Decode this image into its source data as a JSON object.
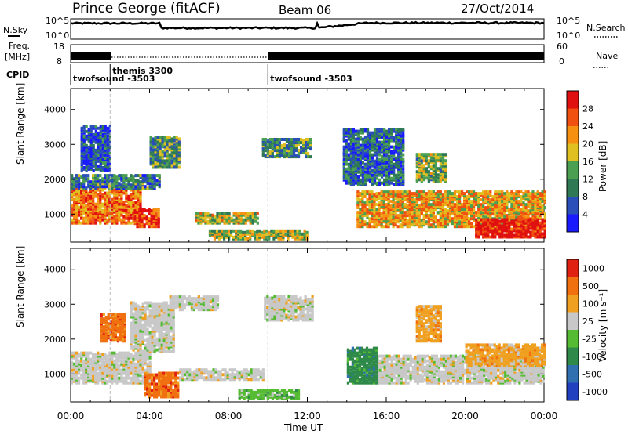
{
  "header": {
    "station": "Prince George (fitACF)",
    "beam": "Beam 06",
    "date": "27/Oct/2014"
  },
  "top_panels": {
    "nsky_label": "N.Sky",
    "nsearch_label": "N.Search",
    "freq_label_top": "Freq.",
    "freq_label_unit": "[MHz]",
    "nave_label": "Nave",
    "cpid_label": "CPID",
    "nsky_ticks": [
      "10^5",
      "10^0"
    ],
    "nsearch_ticks": [
      "10^5",
      "10^0"
    ],
    "freq_ticks": [
      "18",
      "8"
    ],
    "nave_ticks": [
      "60",
      "0"
    ]
  },
  "cpid_segments": [
    {
      "label": "twofsound -3503",
      "start_hour": 0.0,
      "end_hour": 2.0
    },
    {
      "label": "themis 3300",
      "start_hour": 2.0,
      "end_hour": 10.0
    },
    {
      "label": "twofsound -3503",
      "start_hour": 10.0,
      "end_hour": 24.0
    }
  ],
  "chart_data": [
    {
      "type": "heatmap",
      "name_on_chart": "Power",
      "ylabel": "Slant Range [km]",
      "xlabel": "Time UT",
      "x_ticks": [
        "00:00",
        "04:00",
        "08:00",
        "12:00",
        "16:00",
        "20:00",
        "00:00"
      ],
      "x_range_hours": [
        0,
        24
      ],
      "y_ticks": [
        1000,
        2000,
        3000,
        4000
      ],
      "ylim": [
        200,
        4600
      ],
      "colorbar": {
        "label": "Power [dB]",
        "ticks": [
          4,
          8,
          12,
          16,
          20,
          24,
          28
        ],
        "range": [
          0,
          32
        ],
        "colors": [
          "#1a1aff",
          "#2a4fb8",
          "#2f7a55",
          "#4aa050",
          "#e0c020",
          "#f59010",
          "#f05010",
          "#e01010"
        ]
      },
      "echo_regions": [
        {
          "t0": 0.0,
          "t1": 3.5,
          "r0": 700,
          "r1": 1700,
          "level": 0.75
        },
        {
          "t0": 0.0,
          "t1": 4.5,
          "r0": 1700,
          "r1": 2100,
          "level": 0.3
        },
        {
          "t0": 3.2,
          "t1": 4.5,
          "r0": 600,
          "r1": 1100,
          "level": 0.85
        },
        {
          "t0": 4.0,
          "t1": 5.5,
          "r0": 2300,
          "r1": 3200,
          "level": 0.35
        },
        {
          "t0": 6.3,
          "t1": 9.5,
          "r0": 700,
          "r1": 1000,
          "level": 0.55
        },
        {
          "t0": 7.0,
          "t1": 12.0,
          "r0": 250,
          "r1": 500,
          "level": 0.5
        },
        {
          "t0": 9.7,
          "t1": 12.2,
          "r0": 2600,
          "r1": 3100,
          "level": 0.35
        },
        {
          "t0": 14.5,
          "t1": 24.0,
          "r0": 600,
          "r1": 1600,
          "level": 0.65
        },
        {
          "t0": 20.5,
          "t1": 24.0,
          "r0": 300,
          "r1": 800,
          "level": 0.95
        },
        {
          "t0": 13.8,
          "t1": 16.8,
          "r0": 1800,
          "r1": 3400,
          "level": 0.25
        },
        {
          "t0": 17.5,
          "t1": 19.0,
          "r0": 1900,
          "r1": 2700,
          "level": 0.45
        },
        {
          "t0": 0.5,
          "t1": 2.0,
          "r0": 2200,
          "r1": 3500,
          "level": 0.2
        }
      ]
    },
    {
      "type": "heatmap",
      "name_on_chart": "Velocity",
      "ylabel": "Slant Range [km]",
      "xlabel": "Time UT",
      "x_ticks": [
        "00:00",
        "04:00",
        "08:00",
        "12:00",
        "16:00",
        "20:00",
        "00:00"
      ],
      "x_range_hours": [
        0,
        24
      ],
      "y_ticks": [
        1000,
        2000,
        3000,
        4000
      ],
      "ylim": [
        200,
        4600
      ],
      "colorbar": {
        "label": "Velocity [m s⁻¹]",
        "ticks": [
          "1000",
          "500",
          "100",
          "25",
          "-25",
          "-100",
          "-500",
          "-1000"
        ],
        "colors": [
          "#2040c0",
          "#3070b0",
          "#2f8a4a",
          "#55bb33",
          "#c8c8c8",
          "#f0a020",
          "#f07010",
          "#e02010"
        ]
      },
      "echo_regions": [
        {
          "t0": 0.0,
          "t1": 4.0,
          "r0": 700,
          "r1": 1600,
          "vel_index": 4
        },
        {
          "t0": 3.0,
          "t1": 5.2,
          "r0": 1600,
          "r1": 3000,
          "vel_index": 4
        },
        {
          "t0": 3.7,
          "t1": 5.5,
          "r0": 300,
          "r1": 1000,
          "vel_index": 6
        },
        {
          "t0": 5.5,
          "t1": 9.8,
          "r0": 800,
          "r1": 1100,
          "vel_index": 4
        },
        {
          "t0": 8.5,
          "t1": 11.5,
          "r0": 250,
          "r1": 500,
          "vel_index": 3
        },
        {
          "t0": 5.0,
          "t1": 7.5,
          "r0": 2800,
          "r1": 3200,
          "vel_index": 4
        },
        {
          "t0": 9.8,
          "t1": 12.2,
          "r0": 2500,
          "r1": 3200,
          "vel_index": 4
        },
        {
          "t0": 15.5,
          "t1": 24.0,
          "r0": 700,
          "r1": 1500,
          "vel_index": 4
        },
        {
          "t0": 14.0,
          "t1": 15.5,
          "r0": 700,
          "r1": 1700,
          "vel_index": 2
        },
        {
          "t0": 1.5,
          "t1": 2.8,
          "r0": 1900,
          "r1": 2700,
          "vel_index": 6
        },
        {
          "t0": 17.5,
          "t1": 18.8,
          "r0": 1900,
          "r1": 2900,
          "vel_index": 5
        },
        {
          "t0": 20.0,
          "t1": 24.0,
          "r0": 1200,
          "r1": 1800,
          "vel_index": 5
        }
      ]
    }
  ]
}
